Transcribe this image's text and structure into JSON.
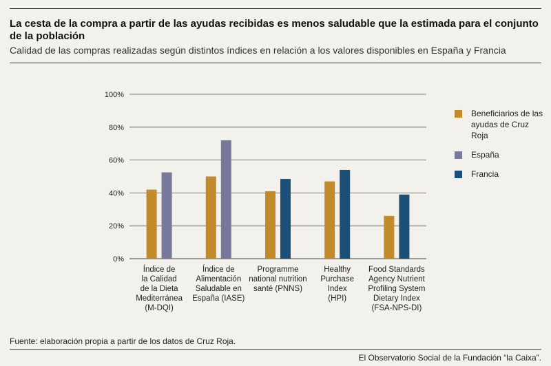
{
  "title": "La cesta de la compra a partir de las ayudas recibidas es menos saludable que la estimada para el conjunto de la población",
  "subtitle": "Calidad de las compras realizadas según distintos índices en relación a los valores disponibles en España y Francia",
  "source": "Fuente: elaboración propia a partir de los datos de Cruz Roja.",
  "footer": "El Observatorio Social de la Fundación “la Caixa”.",
  "chart_data": {
    "type": "bar",
    "title": "",
    "xlabel": "",
    "ylabel": "",
    "ylim": [
      0,
      100
    ],
    "yticks": [
      "0%",
      "20%",
      "40%",
      "60%",
      "80%",
      "100%"
    ],
    "grid": true,
    "legend_position": "right",
    "categories": [
      [
        "Índice de",
        "la Calidad",
        "de la Dieta",
        "Mediterránea",
        "(M-DQI)"
      ],
      [
        "Índice de",
        "Alimentación",
        "Saludable en",
        "España (IASE)"
      ],
      [
        "Programme",
        "national nutrition",
        "santé (PNNS)"
      ],
      [
        "Healthy",
        "Purchase",
        "Index",
        "(HPI)"
      ],
      [
        "Food Standards",
        "Agency Nutrient",
        "Profiling System",
        "Dietary Index",
        "(FSA-NPS-DI)"
      ]
    ],
    "series": [
      {
        "name": "Beneficiarios de las ayudas de Cruz Roja",
        "color": "#c38a2b",
        "values": [
          42,
          50,
          41,
          47,
          26
        ]
      },
      {
        "name": "España",
        "color": "#77789a",
        "values": [
          52.5,
          72,
          null,
          null,
          null
        ]
      },
      {
        "name": "Francia",
        "color": "#1a5078",
        "values": [
          null,
          null,
          48.5,
          54,
          39
        ]
      }
    ]
  }
}
